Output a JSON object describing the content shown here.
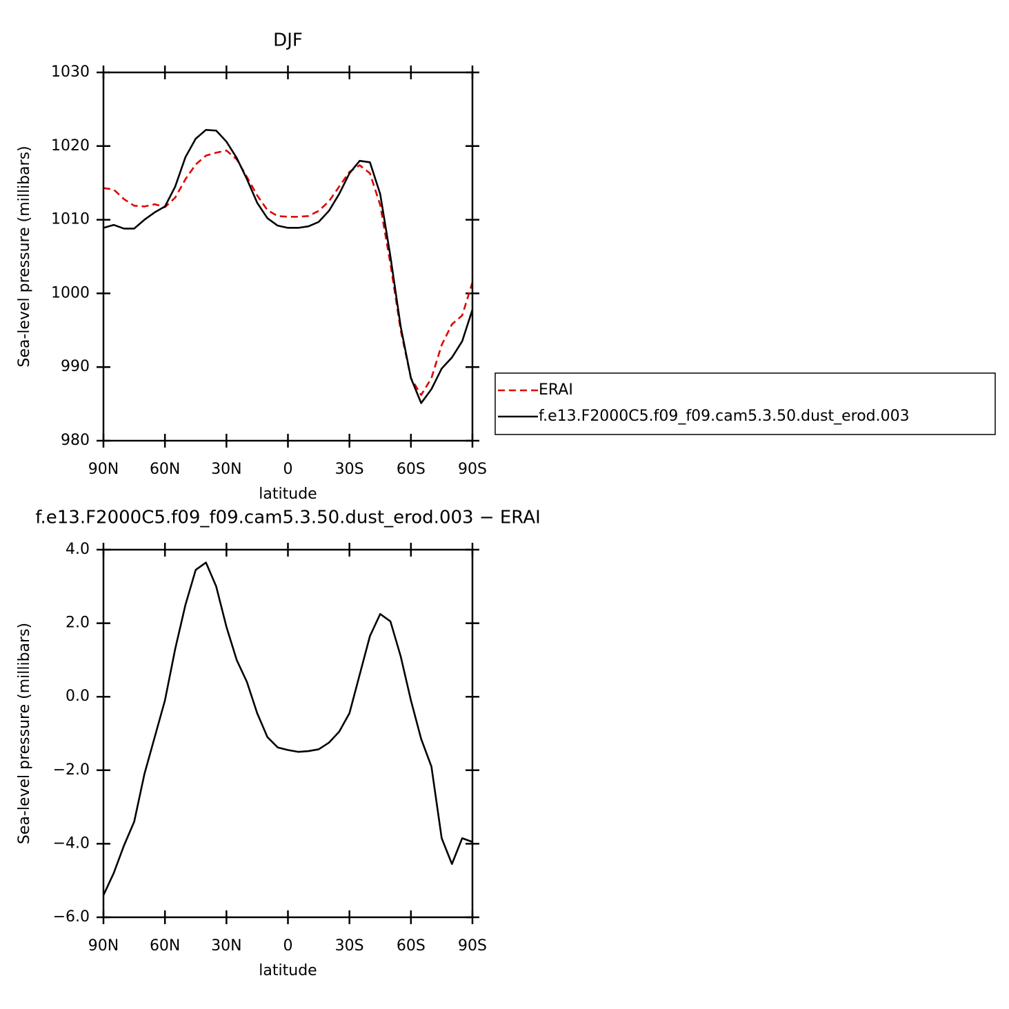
{
  "chart_data": [
    {
      "type": "line",
      "title": "DJF",
      "xlabel": "latitude",
      "ylabel": "Sea-level pressure (millibars)",
      "x": [
        90,
        85,
        80,
        75,
        70,
        65,
        60,
        55,
        50,
        45,
        40,
        35,
        30,
        25,
        20,
        15,
        10,
        5,
        0,
        -5,
        -10,
        -15,
        -20,
        -25,
        -30,
        -35,
        -40,
        -45,
        -50,
        -55,
        -60,
        -65,
        -70,
        -75,
        -80,
        -85,
        -90
      ],
      "series": [
        {
          "name": "ERAI",
          "color": "#e00000",
          "linestyle": "dashed",
          "values": [
            1014.3,
            1014.1,
            1012.8,
            1011.9,
            1011.8,
            1012.1,
            1011.7,
            1013,
            1015.5,
            1017.5,
            1018.7,
            1019.1,
            1019.4,
            1018.2,
            1015.8,
            1013.3,
            1011.3,
            1010.5,
            1010.4,
            1010.4,
            1010.5,
            1011.2,
            1012.5,
            1014.5,
            1016.5,
            1017.4,
            1016.3,
            1012,
            1004,
            995,
            988.5,
            986.2,
            988.5,
            993,
            995.8,
            997,
            1001.5
          ]
        },
        {
          "name": "f.e13.F2000C5.f09_f09.cam5.3.50.dust_erod.003",
          "color": "#000000",
          "linestyle": "solid",
          "values": [
            1008.9,
            1009.3,
            1008.8,
            1008.8,
            1010,
            1011,
            1011.8,
            1014.5,
            1018.5,
            1021,
            1022.2,
            1022.1,
            1020.6,
            1018.4,
            1015.5,
            1012.3,
            1010.2,
            1009.2,
            1008.9,
            1008.9,
            1009.1,
            1009.7,
            1011.2,
            1013.5,
            1016.3,
            1018,
            1017.8,
            1013.5,
            1005,
            995.5,
            988.5,
            985.1,
            987,
            989.8,
            991.3,
            993.5,
            997.8
          ]
        }
      ],
      "xlim": [
        90,
        -90
      ],
      "xticks": [
        {
          "value": 90,
          "label": "90N"
        },
        {
          "value": 60,
          "label": "60N"
        },
        {
          "value": 30,
          "label": "30N"
        },
        0,
        {
          "value": -30,
          "label": "30S"
        },
        {
          "value": -60,
          "label": "60S"
        },
        {
          "value": -90,
          "label": "90S"
        }
      ],
      "ylim": [
        980,
        1030
      ],
      "yticks": [
        980,
        990,
        1000,
        1010,
        1020,
        1030
      ],
      "legend": "right"
    },
    {
      "type": "line",
      "title": "f.e13.F2000C5.f09_f09.cam5.3.50.dust_erod.003 − ERAI",
      "xlabel": "latitude",
      "ylabel": "Sea-level pressure (millibars)",
      "x": [
        90,
        85,
        80,
        75,
        70,
        65,
        60,
        55,
        50,
        45,
        40,
        35,
        30,
        25,
        20,
        15,
        10,
        5,
        0,
        -5,
        -10,
        -15,
        -20,
        -25,
        -30,
        -35,
        -40,
        -45,
        -50,
        -55,
        -60,
        -65,
        -70,
        -75,
        -80,
        -85,
        -90
      ],
      "series": [
        {
          "color": "#000000",
          "linestyle": "solid",
          "values": [
            -5.4,
            -4.8,
            -4.05,
            -3.4,
            -2.1,
            -1.1,
            -0.1,
            1.3,
            2.5,
            3.45,
            3.65,
            3.0,
            1.9,
            1.0,
            0.4,
            -0.45,
            -1.1,
            -1.38,
            -1.45,
            -1.5,
            -1.48,
            -1.43,
            -1.25,
            -0.95,
            -0.45,
            0.6,
            1.65,
            2.25,
            2.05,
            1.1,
            -0.1,
            -1.15,
            -1.9,
            -3.85,
            -4.55,
            -3.85,
            -3.95
          ]
        }
      ],
      "xlim": [
        90,
        -90
      ],
      "xticks": [
        {
          "value": 90,
          "label": "90N"
        },
        {
          "value": 60,
          "label": "60N"
        },
        {
          "value": 30,
          "label": "30N"
        },
        0,
        {
          "value": -30,
          "label": "30S"
        },
        {
          "value": -60,
          "label": "60S"
        },
        {
          "value": -90,
          "label": "90S"
        }
      ],
      "ylim": [
        -6,
        4
      ],
      "yticks": [
        {
          "value": -6,
          "label": "−6.0"
        },
        {
          "value": -4,
          "label": "−4.0"
        },
        {
          "value": -2,
          "label": "−2.0"
        },
        {
          "value": 0,
          "label": "0.0"
        },
        {
          "value": 2,
          "label": "2.0"
        },
        {
          "value": 4,
          "label": "4.0"
        }
      ]
    }
  ]
}
